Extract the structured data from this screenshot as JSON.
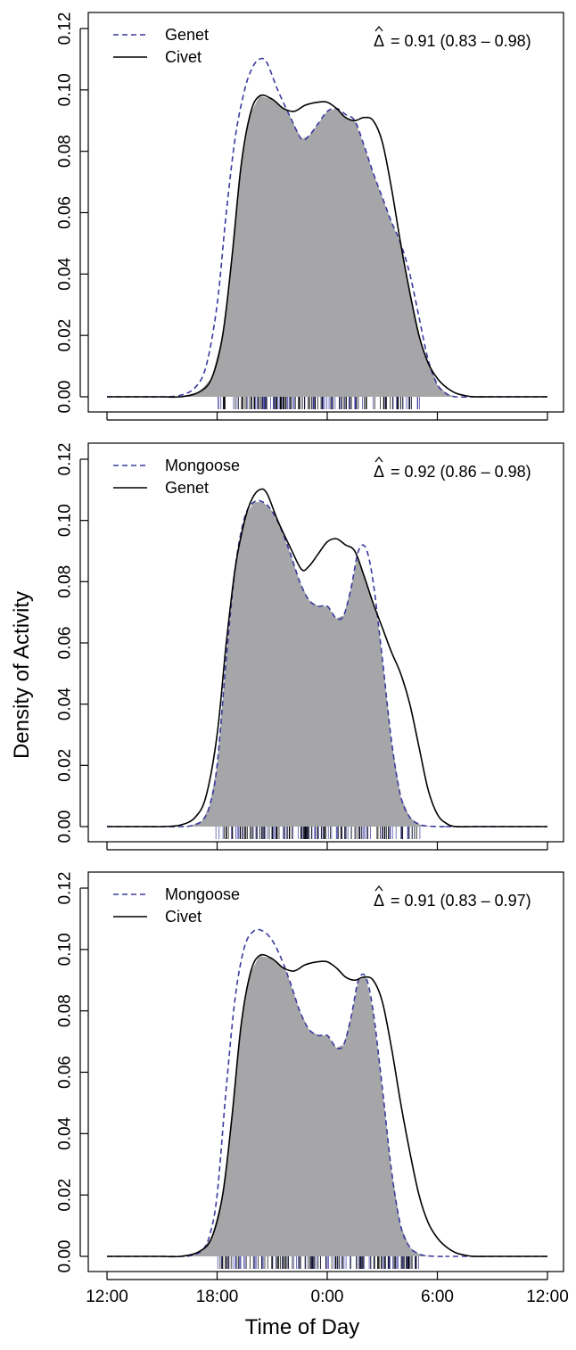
{
  "xlabel": "Time of Day",
  "ylabel": "Density of Activity",
  "colors": {
    "dashed_series": "#3a3aa0",
    "solid_series": "#000000",
    "overlap_fill": "#a6a6a8"
  },
  "chart_data": [
    {
      "type": "line",
      "overlap_label": "= 0.91 (0.83 – 0.98)",
      "x_ticks": [
        "12:00",
        "18:00",
        "0:00",
        "6:00",
        "12:00"
      ],
      "y_ticks": [
        "0.00",
        "0.02",
        "0.04",
        "0.06",
        "0.08",
        "0.10",
        "0.12"
      ],
      "xlim": [
        0,
        24
      ],
      "ylim": [
        0,
        0.12
      ],
      "legend_position": "top-left",
      "series": [
        {
          "name": "Genet",
          "style": "dashed",
          "x": [
            0,
            2,
            3,
            4,
            4.8,
            5.4,
            6,
            6.5,
            7,
            7.5,
            7.9,
            8.3,
            8.7,
            9.3,
            10,
            10.6,
            11,
            11.5,
            12,
            12.5,
            13,
            13.5,
            14,
            14.5,
            15,
            15.5,
            16,
            16.5,
            17,
            17.5,
            18,
            18.5,
            19,
            20,
            21,
            24
          ],
          "y": [
            0,
            0,
            0,
            0.0005,
            0.003,
            0.01,
            0.03,
            0.06,
            0.085,
            0.1,
            0.107,
            0.11,
            0.109,
            0.1,
            0.091,
            0.084,
            0.085,
            0.089,
            0.093,
            0.094,
            0.092,
            0.09,
            0.082,
            0.073,
            0.065,
            0.057,
            0.05,
            0.04,
            0.026,
            0.012,
            0.004,
            0.001,
            0,
            0,
            0,
            0
          ]
        },
        {
          "name": "Civet",
          "style": "solid",
          "x": [
            0,
            2,
            3,
            4,
            5,
            5.7,
            6.3,
            6.8,
            7.3,
            7.8,
            8.3,
            9,
            9.6,
            10.2,
            10.8,
            11.5,
            12,
            12.5,
            13,
            13.5,
            14,
            14.5,
            15,
            15.5,
            16,
            16.5,
            17,
            17.5,
            18,
            18.5,
            19,
            19.5,
            20,
            21,
            24
          ],
          "y": [
            0,
            0,
            0,
            0,
            0.0015,
            0.006,
            0.02,
            0.045,
            0.075,
            0.092,
            0.098,
            0.097,
            0.094,
            0.093,
            0.095,
            0.096,
            0.096,
            0.094,
            0.091,
            0.09,
            0.091,
            0.09,
            0.083,
            0.068,
            0.05,
            0.034,
            0.02,
            0.011,
            0.006,
            0.003,
            0.0012,
            0.0004,
            0,
            0,
            0
          ]
        }
      ]
    },
    {
      "type": "line",
      "overlap_label": "= 0.92 (0.86 – 0.98)",
      "x_ticks": [
        "12:00",
        "18:00",
        "0:00",
        "6:00",
        "12:00"
      ],
      "y_ticks": [
        "0.00",
        "0.02",
        "0.04",
        "0.06",
        "0.08",
        "0.10",
        "0.12"
      ],
      "xlim": [
        0,
        24
      ],
      "ylim": [
        0,
        0.12
      ],
      "legend_position": "top-left",
      "series": [
        {
          "name": "Mongoose",
          "style": "dashed",
          "x": [
            0,
            3,
            4,
            4.6,
            5.2,
            5.6,
            6,
            6.5,
            7,
            7.5,
            8,
            8.5,
            9,
            9.5,
            10,
            10.5,
            11,
            11.5,
            12,
            12.5,
            12.9,
            13.3,
            13.7,
            14.1,
            14.5,
            15,
            15.5,
            16,
            16.5,
            17,
            17.4,
            18,
            18.5,
            19,
            24
          ],
          "y": [
            0,
            0,
            0,
            0.0003,
            0.002,
            0.007,
            0.02,
            0.055,
            0.085,
            0.101,
            0.106,
            0.106,
            0.103,
            0.097,
            0.089,
            0.08,
            0.074,
            0.072,
            0.072,
            0.068,
            0.069,
            0.078,
            0.09,
            0.091,
            0.08,
            0.055,
            0.028,
            0.01,
            0.003,
            0.0008,
            0.0002,
            0,
            0,
            0,
            0
          ]
        },
        {
          "name": "Genet",
          "style": "solid",
          "x": [
            0,
            2,
            3,
            4,
            4.8,
            5.4,
            6,
            6.5,
            7,
            7.5,
            7.9,
            8.3,
            8.7,
            9.3,
            10,
            10.6,
            11,
            11.5,
            12,
            12.5,
            13,
            13.5,
            14,
            14.5,
            15,
            15.5,
            16,
            16.5,
            17,
            17.5,
            18,
            18.5,
            19,
            20,
            21,
            24
          ],
          "y": [
            0,
            0,
            0,
            0.0005,
            0.003,
            0.01,
            0.03,
            0.06,
            0.085,
            0.1,
            0.107,
            0.11,
            0.109,
            0.1,
            0.091,
            0.084,
            0.085,
            0.089,
            0.093,
            0.094,
            0.092,
            0.09,
            0.082,
            0.073,
            0.065,
            0.057,
            0.05,
            0.04,
            0.026,
            0.012,
            0.004,
            0.001,
            0,
            0,
            0,
            0
          ]
        }
      ]
    },
    {
      "type": "line",
      "overlap_label": "= 0.91 (0.83 – 0.97)",
      "x_ticks": [
        "12:00",
        "18:00",
        "0:00",
        "6:00",
        "12:00"
      ],
      "y_ticks": [
        "0.00",
        "0.02",
        "0.04",
        "0.06",
        "0.08",
        "0.10",
        "0.12"
      ],
      "xlim": [
        0,
        24
      ],
      "ylim": [
        0,
        0.12
      ],
      "legend_position": "top-left",
      "series": [
        {
          "name": "Mongoose",
          "style": "dashed",
          "x": [
            0,
            3,
            4,
            4.6,
            5.2,
            5.6,
            6,
            6.5,
            7,
            7.5,
            8,
            8.5,
            9,
            9.5,
            10,
            10.5,
            11,
            11.5,
            12,
            12.5,
            12.9,
            13.3,
            13.7,
            14.1,
            14.5,
            15,
            15.5,
            16,
            16.5,
            17,
            17.4,
            18,
            18.5,
            19,
            24
          ],
          "y": [
            0,
            0,
            0,
            0.0003,
            0.002,
            0.007,
            0.02,
            0.055,
            0.085,
            0.101,
            0.106,
            0.106,
            0.103,
            0.097,
            0.089,
            0.08,
            0.074,
            0.072,
            0.072,
            0.068,
            0.069,
            0.078,
            0.09,
            0.091,
            0.08,
            0.055,
            0.028,
            0.01,
            0.003,
            0.0008,
            0.0002,
            0,
            0,
            0,
            0
          ]
        },
        {
          "name": "Civet",
          "style": "solid",
          "x": [
            0,
            2,
            3,
            4,
            5,
            5.7,
            6.3,
            6.8,
            7.3,
            7.8,
            8.3,
            9,
            9.6,
            10.2,
            10.8,
            11.5,
            12,
            12.5,
            13,
            13.5,
            14,
            14.5,
            15,
            15.5,
            16,
            16.5,
            17,
            17.5,
            18,
            18.5,
            19,
            19.5,
            20,
            21,
            24
          ],
          "y": [
            0,
            0,
            0,
            0,
            0.0015,
            0.006,
            0.02,
            0.045,
            0.075,
            0.092,
            0.098,
            0.097,
            0.094,
            0.093,
            0.095,
            0.096,
            0.096,
            0.094,
            0.091,
            0.09,
            0.091,
            0.09,
            0.083,
            0.068,
            0.05,
            0.034,
            0.02,
            0.011,
            0.006,
            0.003,
            0.0012,
            0.0004,
            0,
            0,
            0
          ]
        }
      ]
    }
  ]
}
